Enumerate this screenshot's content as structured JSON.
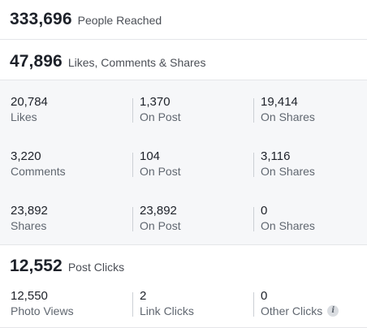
{
  "reach": {
    "value": "333,696",
    "label": "People Reached"
  },
  "engagement": {
    "value": "47,896",
    "label": "Likes, Comments & Shares"
  },
  "stats": [
    {
      "total": {
        "value": "20,784",
        "label": "Likes"
      },
      "on_post": {
        "value": "1,370",
        "label": "On Post"
      },
      "on_shares": {
        "value": "19,414",
        "label": "On Shares"
      }
    },
    {
      "total": {
        "value": "3,220",
        "label": "Comments"
      },
      "on_post": {
        "value": "104",
        "label": "On Post"
      },
      "on_shares": {
        "value": "3,116",
        "label": "On Shares"
      }
    },
    {
      "total": {
        "value": "23,892",
        "label": "Shares"
      },
      "on_post": {
        "value": "23,892",
        "label": "On Post"
      },
      "on_shares": {
        "value": "0",
        "label": "On Shares"
      }
    }
  ],
  "post_clicks": {
    "value": "12,552",
    "label": "Post Clicks",
    "breakdown": [
      {
        "value": "12,550",
        "label": "Photo Views"
      },
      {
        "value": "2",
        "label": "Link Clicks"
      },
      {
        "value": "0",
        "label": "Other Clicks"
      }
    ],
    "info_icon": "info-icon",
    "info_glyph": "i"
  },
  "colors": {
    "text_primary": "#1d2129",
    "text_secondary": "#606770",
    "divider": "#e5e6e9",
    "grey_background": "#f6f7f9"
  }
}
